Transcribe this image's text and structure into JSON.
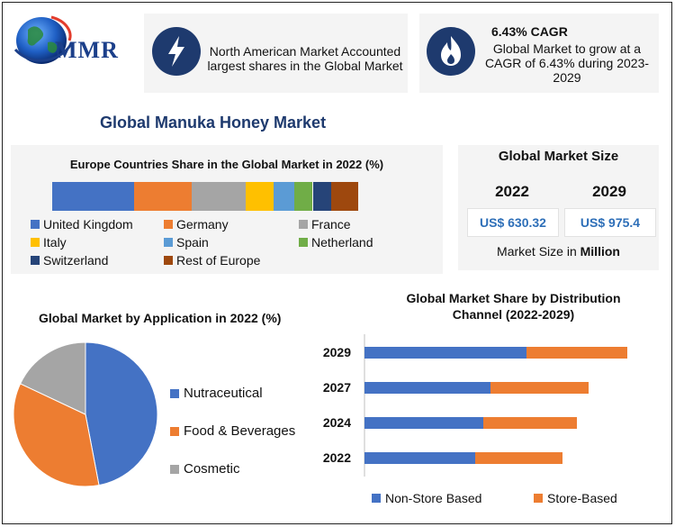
{
  "brand": {
    "name": "MMR"
  },
  "highlights": {
    "north_america": {
      "text": "North American Market Accounted largest shares in the Global Market"
    },
    "cagr": {
      "title": "6.43% CAGR",
      "text": "Global Market to grow at a CAGR of 6.43% during 2023-2029"
    }
  },
  "page_title": "Global Manuka Honey Market",
  "market_size": {
    "title": "Global Market Size",
    "years": [
      "2022",
      "2029"
    ],
    "values": [
      "US$ 630.32",
      "US$ 975.4"
    ],
    "unit_prefix": "Market Size in ",
    "unit_bold": "Million"
  },
  "colors": {
    "blue": "#4472c4",
    "orange": "#ed7d31",
    "gray": "#a5a5a5",
    "yellow": "#ffc000",
    "lightblue": "#5b9bd5",
    "green": "#70ad47",
    "navy": "#264478",
    "brown": "#9e480e",
    "icon_bg": "#1e3a6e"
  },
  "chart_data": [
    {
      "type": "bar",
      "orientation": "horizontal-stacked",
      "title": "Europe Countries Share in the Global Market in 2022 (%)",
      "series": [
        {
          "name": "United Kingdom",
          "value": 27,
          "color": "#4472c4"
        },
        {
          "name": "Germany",
          "value": 19,
          "color": "#ed7d31"
        },
        {
          "name": "France",
          "value": 18,
          "color": "#a5a5a5"
        },
        {
          "name": "Italy",
          "value": 9,
          "color": "#ffc000"
        },
        {
          "name": "Spain",
          "value": 7,
          "color": "#5b9bd5"
        },
        {
          "name": "Netherland",
          "value": 6,
          "color": "#70ad47"
        },
        {
          "name": "Switzerland",
          "value": 6,
          "color": "#264478"
        },
        {
          "name": "Rest of Europe",
          "value": 9,
          "color": "#9e480e"
        }
      ],
      "legend": "bottom"
    },
    {
      "type": "pie",
      "title": "Global Market by Application in 2022 (%)",
      "slices": [
        {
          "name": "Nutraceutical",
          "value": 47,
          "color": "#4472c4"
        },
        {
          "name": "Food & Beverages",
          "value": 35,
          "color": "#ed7d31"
        },
        {
          "name": "Cosmetic",
          "value": 18,
          "color": "#a5a5a5"
        }
      ],
      "legend": "right"
    },
    {
      "type": "bar",
      "orientation": "horizontal-stacked",
      "title": "Global Market Share by Distribution Channel (2022-2029)",
      "categories": [
        "2029",
        "2027",
        "2024",
        "2022"
      ],
      "series": [
        {
          "name": "Non-Store Based",
          "color": "#4472c4",
          "values": [
            180,
            140,
            132,
            123
          ]
        },
        {
          "name": "Store-Based",
          "color": "#ed7d31",
          "values": [
            112,
            109,
            104,
            97
          ]
        }
      ],
      "legend": "bottom"
    }
  ]
}
